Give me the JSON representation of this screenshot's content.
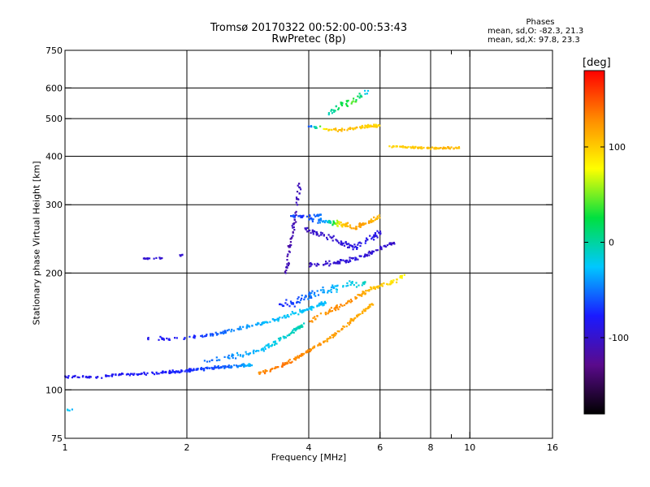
{
  "header": {
    "title_line1": "Tromsø 20170322 00:52:00-00:53:43",
    "title_line2": "RwPretec (8p)",
    "info_heading": "Phases",
    "info_line_o": "mean, sd,O: -82.3, 21.3",
    "info_line_x": "mean, sd,X:  97.8, 23.3"
  },
  "colorbar": {
    "unit": "[deg]",
    "tick_labels": [
      "100",
      "0",
      "-100"
    ],
    "tick_values": [
      100,
      0,
      -100
    ],
    "range": [
      -180,
      180
    ],
    "colors": [
      "#000000",
      "#5a0a8c",
      "#1a1aff",
      "#00c8ff",
      "#00e040",
      "#ffff00",
      "#ff8c00",
      "#ff0000"
    ]
  },
  "chart_data": {
    "type": "scatter",
    "title": "Tromsø 20170322 00:52:00-00:53:43",
    "subtitle": "RwPretec (8p)",
    "xlabel": "Frequency [MHz]",
    "ylabel": "Stationary phase Virtual Height [km]",
    "x_scale": "log",
    "y_scale": "log",
    "xlim": [
      1,
      16
    ],
    "ylim": [
      75,
      750
    ],
    "x_ticks": [
      1,
      2,
      4,
      6,
      8,
      10,
      16
    ],
    "x_tick_labels": [
      "1",
      "2",
      "4",
      "6",
      "8",
      "10",
      "16"
    ],
    "x_minor_ticks": [
      9
    ],
    "y_ticks": [
      75,
      100,
      200,
      300,
      400,
      500,
      600,
      750
    ],
    "y_tick_labels": [
      "75",
      "100",
      "200",
      "300",
      "400",
      "500",
      "600",
      "750"
    ],
    "grid_x": [
      2,
      4,
      6,
      8,
      10
    ],
    "grid_y": [
      100,
      200,
      300,
      400,
      500,
      600
    ],
    "color_quantity": "phase [deg]",
    "series": [
      {
        "trace": [
          [
            1.0,
            108,
            -85
          ],
          [
            1.2,
            108,
            -85
          ],
          [
            1.5,
            110,
            -80
          ],
          [
            1.8,
            111,
            -78
          ],
          [
            2.0,
            112,
            -72
          ],
          [
            2.3,
            114,
            -65
          ],
          [
            2.6,
            115,
            -50
          ],
          [
            2.9,
            116,
            -30
          ]
        ],
        "spread": 0.012,
        "n": 220
      },
      {
        "trace": [
          [
            2.2,
            118,
            -55
          ],
          [
            2.6,
            122,
            -45
          ],
          [
            3.0,
            126,
            -30
          ],
          [
            3.3,
            132,
            -20
          ],
          [
            3.6,
            140,
            -10
          ],
          [
            3.9,
            148,
            -5
          ]
        ],
        "spread": 0.02,
        "n": 110
      },
      {
        "trace": [
          [
            1.6,
            135,
            -85
          ],
          [
            2.0,
            136,
            -75
          ],
          [
            2.4,
            140,
            -55
          ],
          [
            2.8,
            145,
            -40
          ],
          [
            3.2,
            150,
            -30
          ],
          [
            3.6,
            156,
            -25
          ],
          [
            4.0,
            162,
            -25
          ],
          [
            4.4,
            168,
            -30
          ]
        ],
        "spread": 0.015,
        "n": 170
      },
      {
        "trace": [
          [
            3.0,
            110,
            130
          ],
          [
            3.4,
            115,
            135
          ],
          [
            3.8,
            122,
            130
          ],
          [
            4.2,
            130,
            125
          ],
          [
            4.6,
            138,
            120
          ],
          [
            5.0,
            148,
            120
          ],
          [
            5.4,
            158,
            115
          ],
          [
            5.8,
            168,
            110
          ]
        ],
        "spread": 0.015,
        "n": 160
      },
      {
        "trace": [
          [
            4.0,
            150,
            125
          ],
          [
            4.4,
            158,
            125
          ],
          [
            4.8,
            165,
            130
          ],
          [
            5.2,
            172,
            125
          ],
          [
            5.6,
            180,
            110
          ],
          [
            6.0,
            186,
            100
          ],
          [
            6.5,
            190,
            90
          ],
          [
            7.0,
            200,
            80
          ]
        ],
        "spread": 0.02,
        "n": 110
      },
      {
        "trace": [
          [
            3.4,
            165,
            -75
          ],
          [
            3.8,
            170,
            -60
          ],
          [
            4.2,
            178,
            -45
          ],
          [
            4.6,
            182,
            -30
          ],
          [
            5.0,
            186,
            -20
          ],
          [
            5.5,
            190,
            -10
          ]
        ],
        "spread": 0.03,
        "n": 90
      },
      {
        "trace": [
          [
            4.0,
            210,
            -100
          ],
          [
            4.5,
            212,
            -100
          ],
          [
            5.0,
            215,
            -95
          ],
          [
            5.5,
            222,
            -95
          ],
          [
            6.0,
            232,
            -100
          ],
          [
            6.5,
            240,
            -100
          ]
        ],
        "spread": 0.02,
        "n": 100
      },
      {
        "trace": [
          [
            3.9,
            260,
            -105
          ],
          [
            4.3,
            252,
            -100
          ],
          [
            4.8,
            240,
            -95
          ],
          [
            5.2,
            232,
            -90
          ],
          [
            5.7,
            245,
            -85
          ],
          [
            6.0,
            255,
            -95
          ]
        ],
        "spread": 0.025,
        "n": 100
      },
      {
        "trace": [
          [
            4.0,
            275,
            -60
          ],
          [
            4.4,
            272,
            -40
          ],
          [
            4.8,
            268,
            100
          ],
          [
            5.2,
            262,
            120
          ],
          [
            5.6,
            270,
            115
          ],
          [
            6.0,
            280,
            110
          ]
        ],
        "spread": 0.02,
        "n": 120
      },
      {
        "trace": [
          [
            3.6,
            280,
            -60
          ],
          [
            3.9,
            280,
            -70
          ],
          [
            4.3,
            283,
            -50
          ]
        ],
        "spread": 0.01,
        "n": 40
      },
      {
        "trace": [
          [
            3.5,
            200,
            -110
          ],
          [
            3.6,
            240,
            -115
          ],
          [
            3.7,
            280,
            -110
          ],
          [
            3.8,
            340,
            -105
          ]
        ],
        "spread": 0.02,
        "n": 60
      },
      {
        "trace": [
          [
            4.0,
            478,
            -60
          ],
          [
            4.4,
            470,
            90
          ],
          [
            4.8,
            468,
            110
          ],
          [
            5.2,
            472,
            105
          ],
          [
            5.6,
            478,
            100
          ],
          [
            6.0,
            480,
            95
          ]
        ],
        "spread": 0.012,
        "n": 80
      },
      {
        "trace": [
          [
            6.2,
            425,
            90
          ],
          [
            7.0,
            423,
            100
          ],
          [
            7.8,
            420,
            105
          ],
          [
            8.6,
            420,
            110
          ],
          [
            9.4,
            421,
            105
          ]
        ],
        "spread": 0.008,
        "n": 90
      },
      {
        "trace": [
          [
            4.5,
            520,
            -10
          ],
          [
            4.8,
            540,
            20
          ],
          [
            5.2,
            560,
            40
          ],
          [
            5.6,
            590,
            -30
          ]
        ],
        "spread": 0.04,
        "n": 40
      },
      {
        "trace": [
          [
            1.55,
            218,
            -100
          ],
          [
            1.65,
            218,
            -95
          ],
          [
            1.75,
            219,
            -100
          ]
        ],
        "spread": 0.006,
        "n": 15
      },
      {
        "trace": [
          [
            1.92,
            222,
            -100
          ],
          [
            1.96,
            224,
            -95
          ]
        ],
        "spread": 0.01,
        "n": 6
      },
      {
        "trace": [
          [
            1.0,
            89,
            -20
          ],
          [
            1.05,
            89,
            -30
          ]
        ],
        "spread": 0.01,
        "n": 5
      }
    ]
  }
}
